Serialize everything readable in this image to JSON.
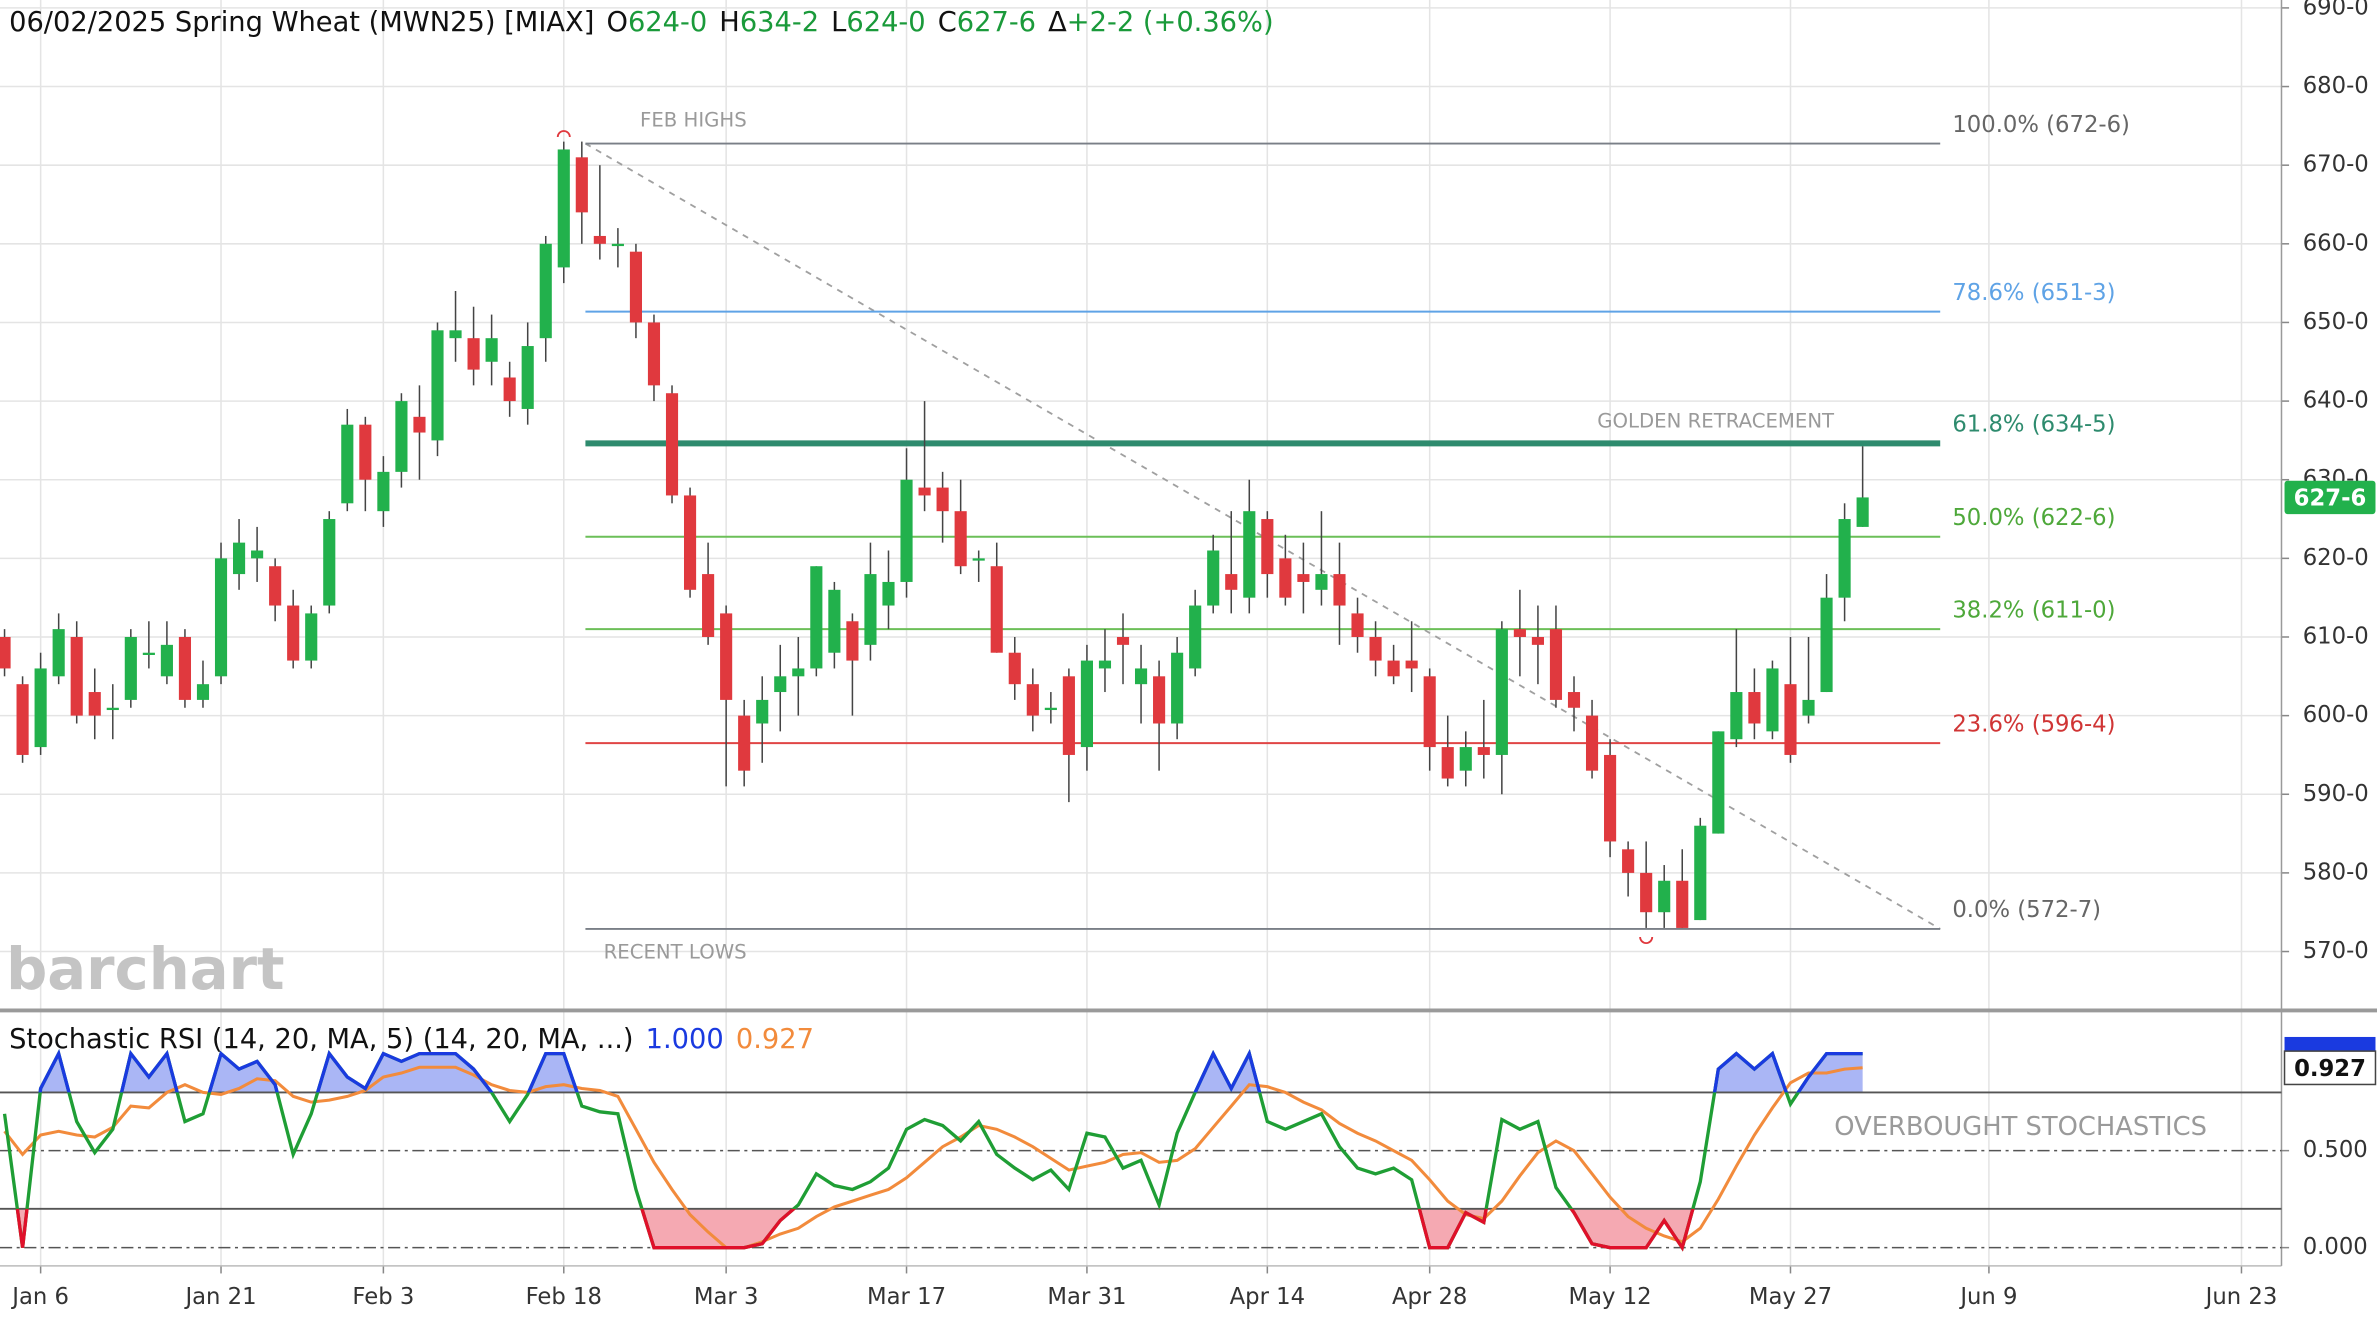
{
  "chart_data": [
    {
      "type": "candlestick",
      "title": "06/02/2025 Spring Wheat (MWN25) [MIAX]",
      "quote": [
        {
          "label": "O",
          "text": "624-0"
        },
        {
          "label": "H",
          "text": "634-2"
        },
        {
          "label": "L",
          "text": "624-0"
        },
        {
          "label": "C",
          "text": "627-6"
        },
        {
          "label": "Δ",
          "text": "+2-2 (+0.36%)"
        }
      ],
      "quote_color": "#1a9a3a",
      "watermark": "barchart",
      "categories": [
        null,
        null,
        "Jan 6",
        null,
        null,
        null,
        null,
        null,
        null,
        null,
        null,
        null,
        "Jan 21",
        null,
        null,
        null,
        null,
        null,
        null,
        null,
        null,
        "Feb 3",
        null,
        null,
        null,
        null,
        null,
        null,
        null,
        null,
        null,
        "Feb 18",
        null,
        null,
        null,
        null,
        null,
        null,
        null,
        null,
        "Mar 3",
        null,
        null,
        null,
        null,
        null,
        null,
        null,
        null,
        null,
        "Mar 17",
        null,
        null,
        null,
        null,
        null,
        null,
        null,
        null,
        null,
        "Mar 31",
        null,
        null,
        null,
        null,
        null,
        null,
        null,
        null,
        null,
        "Apr 14",
        null,
        null,
        null,
        null,
        null,
        null,
        null,
        null,
        "Apr 28",
        null,
        null,
        null,
        null,
        null,
        null,
        null,
        null,
        null,
        "May 12",
        null,
        null,
        null,
        null,
        null,
        null,
        null,
        null,
        null,
        "May 27",
        null,
        null,
        null,
        null,
        null,
        null,
        null,
        null,
        null,
        null,
        "Jun 9",
        null,
        null,
        null,
        null,
        null,
        null,
        null,
        null,
        null,
        null,
        null,
        null,
        null,
        "Jun 23"
      ],
      "open": [
        610,
        604,
        596,
        605,
        610,
        603,
        601,
        602,
        608,
        605,
        610,
        602,
        605,
        618,
        620,
        619,
        614,
        607,
        614,
        627,
        637,
        626,
        631,
        638,
        635,
        648,
        648,
        645,
        643,
        639,
        648,
        657,
        671,
        661,
        660,
        659,
        650,
        641,
        628,
        618,
        613,
        600,
        599,
        603,
        605,
        606,
        608,
        612,
        609,
        614,
        617,
        629,
        629,
        626,
        620,
        619,
        608,
        604,
        601,
        605,
        596,
        606,
        610,
        604,
        605,
        599,
        606,
        614,
        618,
        615,
        625,
        620,
        618,
        616,
        618,
        613,
        610,
        607,
        607,
        605,
        596,
        593,
        596,
        595,
        611,
        610,
        611,
        603,
        600,
        595,
        583,
        580,
        575,
        579,
        574,
        585,
        597,
        603,
        598,
        604,
        600,
        603,
        615,
        624,
        null,
        null,
        null,
        null,
        null,
        null,
        null,
        null,
        null,
        null,
        null,
        null,
        null,
        null,
        null,
        null,
        null,
        null,
        null,
        null,
        null
      ],
      "high": [
        611,
        605,
        608,
        613,
        612,
        606,
        604,
        611,
        612,
        612,
        611,
        607,
        622,
        625,
        624,
        620,
        616,
        614,
        626,
        639,
        638,
        633,
        641,
        642,
        650,
        654,
        652,
        651,
        645,
        650,
        661,
        673,
        673,
        670,
        662,
        660,
        651,
        642,
        629,
        622,
        614,
        602,
        605,
        609,
        610,
        619,
        617,
        613,
        622,
        621,
        634,
        640,
        631,
        630,
        621,
        622,
        610,
        606,
        603,
        606,
        609,
        611,
        613,
        609,
        607,
        610,
        616,
        623,
        626,
        630,
        626,
        623,
        622,
        626,
        622,
        615,
        612,
        609,
        612,
        606,
        600,
        598,
        602,
        612,
        616,
        614,
        614,
        605,
        602,
        597,
        584,
        584,
        581,
        583,
        587,
        598,
        611,
        606,
        607,
        610,
        610,
        618,
        627,
        634.25,
        null,
        null,
        null,
        null,
        null,
        null,
        null,
        null,
        null,
        null,
        null,
        null,
        null,
        null,
        null,
        null,
        null,
        null,
        null,
        null,
        null
      ],
      "low": [
        605,
        594,
        595,
        604,
        599,
        597,
        597,
        601,
        606,
        604,
        601,
        601,
        604,
        616,
        617,
        612,
        606,
        606,
        613,
        626,
        626,
        624,
        629,
        630,
        633,
        645,
        642,
        642,
        638,
        637,
        645,
        655,
        660,
        658,
        657,
        648,
        640,
        627,
        615,
        609,
        591,
        591,
        594,
        598,
        600,
        605,
        606,
        600,
        607,
        611,
        615,
        626,
        622,
        618,
        617,
        608,
        602,
        598,
        599,
        589,
        593,
        603,
        604,
        599,
        593,
        597,
        605,
        613,
        613,
        613,
        615,
        614,
        613,
        614,
        609,
        608,
        605,
        604,
        603,
        593,
        591,
        591,
        592,
        590,
        605,
        604,
        601,
        598,
        592,
        582,
        577,
        573,
        573,
        573,
        574,
        585,
        596,
        597,
        597,
        594,
        599,
        603,
        612,
        624,
        null,
        null,
        null,
        null,
        null,
        null,
        null,
        null,
        null,
        null,
        null,
        null,
        null,
        null,
        null,
        null,
        null,
        null,
        null,
        null,
        null
      ],
      "close": [
        606,
        595,
        606,
        611,
        600,
        600,
        601,
        610,
        608,
        609,
        602,
        604,
        620,
        622,
        621,
        614,
        607,
        613,
        625,
        637,
        630,
        631,
        640,
        636,
        649,
        649,
        644,
        648,
        640,
        647,
        660,
        672,
        664,
        660,
        660,
        650,
        642,
        628,
        616,
        610,
        602,
        593,
        602,
        605,
        606,
        619,
        616,
        607,
        618,
        617,
        630,
        628,
        626,
        619,
        620,
        608,
        604,
        600,
        601,
        595,
        607,
        607,
        609,
        606,
        599,
        608,
        614,
        621,
        616,
        626,
        618,
        615,
        617,
        618,
        614,
        610,
        607,
        605,
        606,
        596,
        592,
        596,
        595,
        611,
        610,
        609,
        602,
        601,
        593,
        584,
        580,
        575,
        579,
        573,
        586,
        598,
        603,
        599,
        606,
        595,
        602,
        615,
        625,
        627.75,
        null,
        null,
        null,
        null,
        null,
        null,
        null,
        null,
        null,
        null,
        null,
        null,
        null,
        null,
        null,
        null,
        null,
        null,
        null,
        null,
        null
      ],
      "up_color": "#22b14c",
      "down_color": "#e0393e",
      "ylim": [
        562.8,
        691
      ],
      "yticks": [
        {
          "value": 570,
          "label": "570-0"
        },
        {
          "value": 580,
          "label": "580-0"
        },
        {
          "value": 590,
          "label": "590-0"
        },
        {
          "value": 600,
          "label": "600-0"
        },
        {
          "value": 610,
          "label": "610-0"
        },
        {
          "value": 620,
          "label": "620-0"
        },
        {
          "value": 630,
          "label": "630-0"
        },
        {
          "value": 640,
          "label": "640-0"
        },
        {
          "value": 650,
          "label": "650-0"
        },
        {
          "value": 660,
          "label": "660-0"
        },
        {
          "value": 670,
          "label": "670-0"
        },
        {
          "value": 680,
          "label": "680-0"
        },
        {
          "value": 690,
          "label": "690-0"
        }
      ],
      "grid": true,
      "last_price": {
        "value": 627.75,
        "label": "627-6"
      },
      "fib": {
        "start_note": "FEB HIGHS",
        "end_note": "RECENT LOWS",
        "key_note": "GOLDEN RETRACEMENT",
        "levels": [
          {
            "label": "100.0% (672-6)",
            "value": 672.75,
            "color": "#7a7f87",
            "text_color": "#666666"
          },
          {
            "label": "78.6% (651-3)",
            "value": 651.375,
            "color": "#5fa3e6",
            "text_color": "#5fa3e6"
          },
          {
            "label": "61.8% (634-5)",
            "value": 634.625,
            "color": "#2e8b6e",
            "text_color": "#2e8b6e"
          },
          {
            "label": "50.0% (622-6)",
            "value": 622.75,
            "color": "#6cbf58",
            "text_color": "#4ea83a"
          },
          {
            "label": "38.2% (611-0)",
            "value": 611,
            "color": "#6cbf58",
            "text_color": "#4ea83a"
          },
          {
            "label": "23.6% (596-4)",
            "value": 596.5,
            "color": "#e04545",
            "text_color": "#d03535"
          },
          {
            "label": "0.0% (572-7)",
            "value": 572.875,
            "color": "#7a7f87",
            "text_color": "#666666"
          }
        ]
      }
    },
    {
      "type": "line",
      "title": "Stochastic RSI (14, 20, MA, 5)  (14, 20, MA, ...)",
      "series": [
        {
          "color": "#1f9e35",
          "above_color": "#1a3ae0",
          "below_color": "#e0102a",
          "last_label": "1.000",
          "values": [
            0.69,
            0,
            0.82,
            1,
            0.65,
            0.49,
            0.61,
            1,
            0.88,
            1,
            0.65,
            0.69,
            1,
            0.92,
            0.96,
            0.84,
            0.48,
            0.69,
            1,
            0.88,
            0.82,
            1,
            0.96,
            1,
            1,
            1,
            0.92,
            0.8,
            0.65,
            0.79,
            1,
            1,
            0.73,
            0.7,
            0.69,
            0.3,
            0,
            0,
            0,
            0,
            0,
            0,
            0.02,
            0.14,
            0.22,
            0.38,
            0.32,
            0.3,
            0.34,
            0.41,
            0.61,
            0.66,
            0.63,
            0.55,
            0.65,
            0.48,
            0.41,
            0.35,
            0.4,
            0.3,
            0.59,
            0.57,
            0.41,
            0.45,
            0.22,
            0.59,
            0.8,
            1,
            0.82,
            1,
            0.65,
            0.61,
            0.65,
            0.69,
            0.52,
            0.41,
            0.38,
            0.41,
            0.35,
            0,
            0,
            0.18,
            0.13,
            0.66,
            0.61,
            0.65,
            0.31,
            0.18,
            0.02,
            0,
            0,
            0,
            0.14,
            0,
            0.34,
            0.92,
            1,
            0.92,
            1,
            0.74,
            0.88,
            1,
            1,
            1,
            null,
            null,
            null,
            null,
            null,
            null,
            null,
            null,
            null,
            null,
            null,
            null,
            null,
            null,
            null,
            null,
            null,
            null,
            null,
            null,
            null
          ]
        },
        {
          "color": "#f28b3c",
          "last_label": "0.927",
          "values": [
            0.6,
            0.48,
            0.58,
            0.6,
            0.58,
            0.57,
            0.62,
            0.73,
            0.72,
            0.8,
            0.84,
            0.8,
            0.79,
            0.82,
            0.87,
            0.86,
            0.78,
            0.75,
            0.76,
            0.78,
            0.81,
            0.88,
            0.9,
            0.93,
            0.93,
            0.93,
            0.89,
            0.84,
            0.81,
            0.8,
            0.83,
            0.84,
            0.82,
            0.81,
            0.78,
            0.61,
            0.44,
            0.3,
            0.17,
            0.08,
            0,
            0,
            0.03,
            0.07,
            0.1,
            0.16,
            0.21,
            0.24,
            0.27,
            0.3,
            0.36,
            0.44,
            0.52,
            0.57,
            0.63,
            0.61,
            0.57,
            0.52,
            0.46,
            0.4,
            0.42,
            0.44,
            0.48,
            0.49,
            0.44,
            0.45,
            0.51,
            0.62,
            0.73,
            0.84,
            0.83,
            0.8,
            0.75,
            0.71,
            0.64,
            0.59,
            0.55,
            0.5,
            0.45,
            0.35,
            0.24,
            0.17,
            0.15,
            0.24,
            0.37,
            0.49,
            0.55,
            0.5,
            0.38,
            0.26,
            0.16,
            0.1,
            0.06,
            0.03,
            0.1,
            0.25,
            0.42,
            0.58,
            0.72,
            0.85,
            0.9,
            0.9,
            0.92,
            0.927,
            null,
            null,
            null,
            null,
            null,
            null,
            null,
            null,
            null,
            null,
            null,
            null,
            null,
            null,
            null,
            null,
            null,
            null,
            null,
            null,
            null
          ]
        }
      ],
      "ylim": [
        -0.094,
        1.211
      ],
      "yticks": [
        {
          "value": 0,
          "label": "0.000"
        },
        {
          "value": 0.5,
          "label": "0.500"
        }
      ],
      "bands": [
        0.2,
        0.8
      ],
      "above_fill": "#aab6f5",
      "below_fill": "#f5a9b2",
      "note": "OVERBOUGHT STOCHASTICS"
    }
  ]
}
